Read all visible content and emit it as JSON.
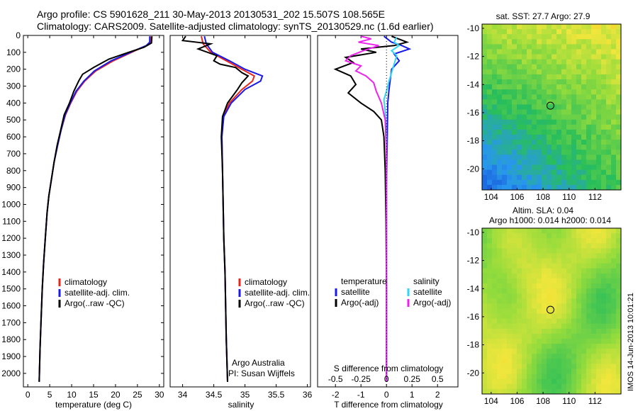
{
  "header": {
    "line1": "Argo profile: CS 5901628_211 30-May-2013 20130531_202 15.507S 108.565E",
    "line2": "Climatology: CARS2009. Satellite-adjusted climatology: synTS_20130529.nc (1.6d earlier)"
  },
  "colors": {
    "climatology": "#e8261c",
    "satellite": "#1a1ae6",
    "argo": "#000000",
    "sat_salinity": "#33d6f0",
    "argo_salinity": "#ee22ee"
  },
  "chart_data": [
    {
      "type": "line",
      "id": "temperature",
      "xlabel": "temperature (deg C)",
      "ylabel": "",
      "xlim": [
        -1,
        31
      ],
      "ylim": [
        2080,
        0
      ],
      "xticks": [
        0,
        5,
        10,
        15,
        20,
        25,
        30
      ],
      "yticks": [
        0,
        100,
        200,
        300,
        400,
        500,
        600,
        700,
        800,
        900,
        1000,
        1100,
        1200,
        1300,
        1400,
        1500,
        1600,
        1700,
        1800,
        1900,
        2000
      ],
      "legend": [
        "climatology",
        "satellite-adj. clim.",
        "Argo(..raw -QC)"
      ],
      "series": [
        {
          "name": "climatology",
          "color_key": "climatology",
          "points": [
            [
              28.0,
              5
            ],
            [
              28.0,
              40
            ],
            [
              27.2,
              60
            ],
            [
              24.5,
              90
            ],
            [
              19.5,
              150
            ],
            [
              15.5,
              210
            ],
            [
              13.0,
              270
            ],
            [
              11.2,
              330
            ],
            [
              9.8,
              400
            ],
            [
              8.6,
              470
            ],
            [
              7.6,
              560
            ],
            [
              6.8,
              650
            ],
            [
              6.0,
              750
            ],
            [
              5.4,
              850
            ],
            [
              4.8,
              950
            ],
            [
              4.4,
              1050
            ],
            [
              4.0,
              1200
            ],
            [
              3.6,
              1350
            ],
            [
              3.3,
              1500
            ],
            [
              3.0,
              1700
            ],
            [
              2.8,
              1850
            ],
            [
              2.6,
              2050
            ]
          ]
        },
        {
          "name": "satellite-adj. clim.",
          "color_key": "satellite",
          "points": [
            [
              27.8,
              5
            ],
            [
              27.8,
              40
            ],
            [
              27.0,
              60
            ],
            [
              24.3,
              90
            ],
            [
              19.0,
              150
            ],
            [
              15.2,
              210
            ],
            [
              12.8,
              270
            ],
            [
              11.0,
              330
            ],
            [
              9.7,
              400
            ],
            [
              8.5,
              470
            ],
            [
              7.6,
              560
            ],
            [
              6.8,
              650
            ],
            [
              6.0,
              750
            ],
            [
              5.4,
              850
            ],
            [
              4.8,
              950
            ],
            [
              4.4,
              1050
            ],
            [
              4.0,
              1200
            ],
            [
              3.6,
              1350
            ],
            [
              3.3,
              1500
            ],
            [
              3.0,
              1700
            ],
            [
              2.8,
              1850
            ],
            [
              2.6,
              2050
            ]
          ]
        },
        {
          "name": "Argo(..raw -QC)",
          "color_key": "argo",
          "points": [
            [
              28.3,
              5
            ],
            [
              28.2,
              45
            ],
            [
              26.5,
              70
            ],
            [
              23.0,
              100
            ],
            [
              18.5,
              140
            ],
            [
              15.0,
              190
            ],
            [
              12.5,
              230
            ],
            [
              11.6,
              270
            ],
            [
              10.5,
              330
            ],
            [
              9.5,
              400
            ],
            [
              8.3,
              470
            ],
            [
              7.5,
              560
            ],
            [
              6.7,
              650
            ],
            [
              6.0,
              750
            ],
            [
              5.4,
              850
            ],
            [
              4.8,
              950
            ],
            [
              4.4,
              1050
            ],
            [
              4.0,
              1200
            ],
            [
              3.6,
              1350
            ],
            [
              3.3,
              1500
            ],
            [
              3.0,
              1700
            ],
            [
              2.8,
              1850
            ],
            [
              2.6,
              2050
            ]
          ]
        }
      ]
    },
    {
      "type": "line",
      "id": "salinity",
      "xlabel": "salinity",
      "ylabel": "",
      "xlim": [
        33.8,
        36.05
      ],
      "ylim": [
        2080,
        0
      ],
      "xticks": [
        34,
        34.5,
        35,
        35.5,
        36
      ],
      "xtick_labels": [
        "34",
        "34.5",
        "35",
        "35.5",
        "36"
      ],
      "legend": [
        "climatology",
        "satellite-adj. clim.",
        "Argo(..raw -QC)"
      ],
      "annotation": [
        "Argo Australia",
        "PI: Susan Wijffels"
      ],
      "series": [
        {
          "name": "climatology",
          "color_key": "climatology",
          "points": [
            [
              34.3,
              5
            ],
            [
              34.33,
              50
            ],
            [
              34.45,
              100
            ],
            [
              34.7,
              150
            ],
            [
              34.95,
              200
            ],
            [
              35.15,
              240
            ],
            [
              35.12,
              270
            ],
            [
              34.95,
              320
            ],
            [
              34.75,
              400
            ],
            [
              34.65,
              480
            ],
            [
              34.63,
              600
            ],
            [
              34.64,
              800
            ],
            [
              34.65,
              1000
            ],
            [
              34.66,
              1200
            ],
            [
              34.68,
              1400
            ],
            [
              34.69,
              1600
            ],
            [
              34.7,
              1800
            ],
            [
              34.72,
              2050
            ]
          ]
        },
        {
          "name": "satellite-adj. clim.",
          "color_key": "satellite",
          "points": [
            [
              34.35,
              5
            ],
            [
              34.38,
              50
            ],
            [
              34.48,
              100
            ],
            [
              34.75,
              150
            ],
            [
              35.0,
              200
            ],
            [
              35.28,
              240
            ],
            [
              35.25,
              270
            ],
            [
              35.0,
              320
            ],
            [
              34.78,
              400
            ],
            [
              34.66,
              480
            ],
            [
              34.63,
              600
            ],
            [
              34.64,
              800
            ],
            [
              34.65,
              1000
            ],
            [
              34.66,
              1200
            ],
            [
              34.68,
              1400
            ],
            [
              34.69,
              1600
            ],
            [
              34.7,
              1800
            ],
            [
              34.72,
              2050
            ]
          ]
        },
        {
          "name": "Argo(..raw -QC)",
          "color_key": "argo",
          "points": [
            [
              34.05,
              5
            ],
            [
              34.0,
              30
            ],
            [
              34.45,
              50
            ],
            [
              34.25,
              80
            ],
            [
              34.55,
              120
            ],
            [
              34.5,
              150
            ],
            [
              34.6,
              170
            ],
            [
              34.85,
              190
            ],
            [
              34.95,
              220
            ],
            [
              35.05,
              240
            ],
            [
              34.95,
              280
            ],
            [
              34.88,
              320
            ],
            [
              34.72,
              400
            ],
            [
              34.64,
              480
            ],
            [
              34.62,
              600
            ],
            [
              34.64,
              800
            ],
            [
              34.65,
              1000
            ],
            [
              34.66,
              1200
            ],
            [
              34.68,
              1400
            ],
            [
              34.69,
              1600
            ],
            [
              34.7,
              1800
            ],
            [
              34.72,
              2050
            ]
          ]
        }
      ]
    },
    {
      "type": "line",
      "id": "difference",
      "xlabel": "T difference from climatology",
      "x2label": "S difference from climatology",
      "ylabel": "",
      "xlim": [
        -2.7,
        2.8
      ],
      "ylim": [
        2080,
        0
      ],
      "xticks": [
        -2,
        -1,
        0,
        1,
        2
      ],
      "x2ticks": [
        -0.5,
        -0.25,
        0,
        0.25,
        0.5
      ],
      "x2tick_labels": [
        "-0.5",
        "-0.25",
        "0",
        "0.25",
        "0.5"
      ],
      "legend_temperature_title": "temperature",
      "legend_salinity_title": "salinity",
      "legend_temperature": [
        "satellite",
        "Argo(-adj)"
      ],
      "legend_salinity": [
        "satellite",
        "Argo(-adj)"
      ],
      "series": [
        {
          "name": "satellite",
          "color_key": "satellite",
          "points": [
            [
              -0.1,
              5
            ],
            [
              0.2,
              40
            ],
            [
              0.6,
              60
            ],
            [
              0.9,
              80
            ],
            [
              0.3,
              110
            ],
            [
              0.5,
              150
            ],
            [
              0.2,
              200
            ],
            [
              0.15,
              260
            ],
            [
              0.1,
              320
            ],
            [
              0.05,
              400
            ],
            [
              0.03,
              600
            ],
            [
              0.0,
              900
            ],
            [
              0.0,
              1500
            ],
            [
              0.0,
              2050
            ]
          ]
        },
        {
          "name": "Argo(-adj)",
          "color_key": "argo",
          "points": [
            [
              0.2,
              5
            ],
            [
              0.8,
              40
            ],
            [
              0.3,
              60
            ],
            [
              -1.0,
              80
            ],
            [
              -0.4,
              100
            ],
            [
              -1.6,
              130
            ],
            [
              -1.3,
              160
            ],
            [
              -2.0,
              200
            ],
            [
              -1.4,
              240
            ],
            [
              -1.2,
              290
            ],
            [
              -1.5,
              340
            ],
            [
              -1.0,
              400
            ],
            [
              -0.5,
              450
            ],
            [
              -0.2,
              500
            ],
            [
              -0.1,
              600
            ],
            [
              -0.05,
              800
            ],
            [
              -0.02,
              1100
            ],
            [
              0.0,
              1500
            ],
            [
              0.0,
              2050
            ]
          ]
        },
        {
          "name": "satellite",
          "color_key": "sat_salinity",
          "points": [
            [
              0.4,
              10
            ],
            [
              0.3,
              40
            ],
            [
              0.5,
              60
            ],
            [
              0.2,
              90
            ],
            [
              0.4,
              120
            ],
            [
              0.3,
              170
            ],
            [
              0.2,
              220
            ],
            [
              0.1,
              270
            ],
            [
              0.0,
              330
            ],
            [
              -0.1,
              380
            ],
            [
              -0.05,
              450
            ],
            [
              0.0,
              600
            ],
            [
              0.0,
              900
            ],
            [
              0.0,
              1500
            ],
            [
              0.0,
              2050
            ]
          ]
        },
        {
          "name": "Argo(-adj)",
          "color_key": "argo_salinity",
          "points": [
            [
              -1.0,
              5
            ],
            [
              -0.6,
              20
            ],
            [
              -1.1,
              40
            ],
            [
              -0.3,
              60
            ],
            [
              -0.9,
              90
            ],
            [
              -1.4,
              120
            ],
            [
              -1.6,
              150
            ],
            [
              -1.0,
              180
            ],
            [
              -1.2,
              210
            ],
            [
              -0.8,
              240
            ],
            [
              -0.5,
              280
            ],
            [
              -0.4,
              330
            ],
            [
              -0.2,
              400
            ],
            [
              -0.05,
              500
            ],
            [
              0.0,
              700
            ],
            [
              0.0,
              1000
            ],
            [
              0.0,
              1500
            ],
            [
              0.0,
              2050
            ]
          ]
        }
      ]
    },
    {
      "type": "heatmap",
      "id": "sst_map",
      "title": "sat. SST: 27.7 Argo: 27.9",
      "xticks": [
        104,
        106,
        108,
        110,
        112
      ],
      "yticks": [
        -10,
        -12,
        -14,
        -16,
        -18,
        -20
      ],
      "xlim": [
        103.3,
        114
      ],
      "ylim": [
        -21.5,
        -9.7
      ],
      "marker": {
        "lon": 108.565,
        "lat": -15.507
      }
    },
    {
      "type": "heatmap",
      "id": "sla_map",
      "title": "Altim. SLA: 0.04",
      "subtitle": "Argo h1000: 0.014 h2000: 0.014",
      "xticks": [
        104,
        106,
        108,
        110,
        112
      ],
      "yticks": [
        -10,
        -12,
        -14,
        -16,
        -18,
        -20
      ],
      "xlim": [
        103.3,
        114
      ],
      "ylim": [
        -21.5,
        -9.7
      ],
      "marker": {
        "lon": 108.565,
        "lat": -15.507
      }
    }
  ],
  "footer": {
    "stamp": "IMOS 14-Jun-2013 10:01:21"
  }
}
